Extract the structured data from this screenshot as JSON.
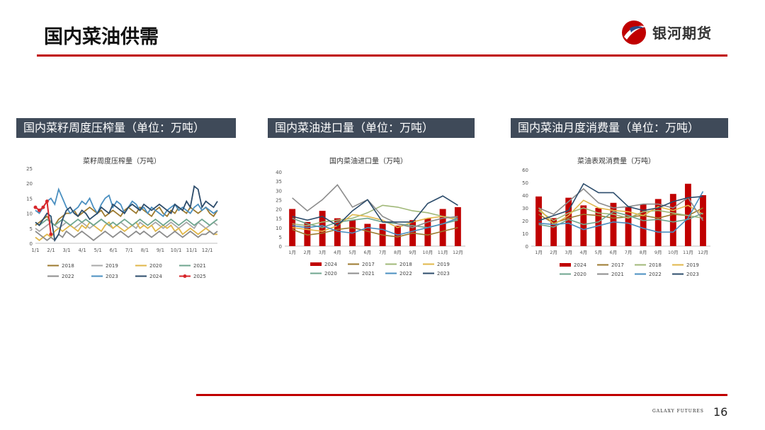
{
  "page": {
    "title": "国内菜油供需",
    "logo_text": "银河期货",
    "footer_brand": "GALAXY FUTURES",
    "page_number": "16"
  },
  "colors": {
    "accent_red": "#c00000",
    "header_bg": "#3f4a59"
  },
  "panels": [
    {
      "header": "国内菜籽周度压榨量（单位：万吨）"
    },
    {
      "header": "国内菜油进口量（单位：万吨）"
    },
    {
      "header": "国内菜油月度消费量（单位：万吨）"
    }
  ],
  "chart_data": [
    {
      "type": "line",
      "title": "菜籽周度压榨量（万吨）",
      "x_labels": [
        "1/1",
        "2/1",
        "3/1",
        "4/1",
        "5/1",
        "6/1",
        "7/1",
        "8/1",
        "9/1",
        "10/1",
        "11/1",
        "12/1"
      ],
      "ylim": [
        0,
        25
      ],
      "yticks": [
        0,
        5,
        10,
        15,
        20,
        25
      ],
      "grid": false,
      "legend": "bottom",
      "series": [
        {
          "name": "2018",
          "color": "#9c7a2f",
          "values": [
            6,
            7,
            8,
            9,
            7,
            6,
            8,
            9,
            10,
            10,
            11,
            9,
            10,
            11,
            12,
            11,
            10,
            11,
            9,
            10,
            11,
            10,
            9,
            11,
            12,
            11,
            10,
            12,
            11,
            10,
            9,
            11,
            12,
            10,
            9,
            11,
            10,
            12,
            11,
            10,
            12,
            11,
            10,
            11,
            12,
            10,
            9,
            11
          ]
        },
        {
          "name": "2019",
          "color": "#a8a8a8",
          "values": [
            5,
            4,
            5,
            6,
            7,
            6,
            5,
            6,
            7,
            6,
            5,
            6,
            7,
            6,
            5,
            6,
            7,
            8,
            7,
            6,
            5,
            6,
            7,
            6,
            5,
            6,
            5,
            7,
            6,
            5,
            6,
            7,
            6,
            5,
            6,
            7,
            6,
            5,
            6,
            7,
            6,
            5,
            7,
            6,
            5,
            6,
            7,
            6
          ]
        },
        {
          "name": "2020",
          "color": "#e0b74a",
          "values": [
            2,
            1,
            2,
            3,
            2,
            4,
            5,
            4,
            5,
            6,
            5,
            4,
            6,
            5,
            7,
            6,
            5,
            4,
            6,
            7,
            5,
            6,
            5,
            4,
            5,
            6,
            7,
            5,
            6,
            5,
            6,
            4,
            5,
            6,
            5,
            6,
            4,
            5,
            3,
            4,
            5,
            4,
            3,
            4,
            5,
            4,
            3,
            3
          ]
        },
        {
          "name": "2021",
          "color": "#6fa68f",
          "values": [
            7,
            6,
            7,
            8,
            7,
            6,
            7,
            8,
            7,
            6,
            7,
            8,
            7,
            8,
            7,
            6,
            7,
            8,
            7,
            6,
            7,
            6,
            7,
            8,
            7,
            6,
            7,
            8,
            7,
            6,
            7,
            8,
            7,
            6,
            7,
            8,
            7,
            6,
            7,
            8,
            7,
            6,
            7,
            8,
            7,
            6,
            7,
            8
          ]
        },
        {
          "name": "2022",
          "color": "#8c8c8c",
          "values": [
            4,
            3,
            2,
            1,
            2,
            1,
            3,
            2,
            4,
            3,
            2,
            3,
            4,
            3,
            2,
            1,
            2,
            3,
            4,
            3,
            2,
            3,
            4,
            3,
            2,
            3,
            4,
            3,
            4,
            3,
            2,
            3,
            4,
            3,
            2,
            3,
            4,
            3,
            2,
            3,
            4,
            3,
            2,
            3,
            3,
            4,
            3,
            4
          ]
        },
        {
          "name": "2023",
          "color": "#4a8fc0",
          "values": [
            11,
            10,
            12,
            14,
            15,
            13,
            18,
            15,
            12,
            10,
            11,
            12,
            14,
            13,
            15,
            12,
            10,
            13,
            15,
            16,
            12,
            14,
            13,
            10,
            12,
            14,
            13,
            11,
            12,
            10,
            12,
            11,
            10,
            9,
            11,
            12,
            13,
            11,
            12,
            11,
            10,
            12,
            13,
            11,
            12,
            11,
            10,
            11
          ]
        },
        {
          "name": "2024",
          "color": "#2c4c6b",
          "values": [
            7,
            6,
            8,
            10,
            9,
            1,
            3,
            8,
            11,
            12,
            10,
            9,
            11,
            10,
            8,
            9,
            10,
            12,
            11,
            10,
            13,
            12,
            11,
            10,
            12,
            13,
            12,
            11,
            13,
            12,
            11,
            12,
            13,
            12,
            11,
            10,
            13,
            12,
            11,
            14,
            12,
            19,
            18,
            12,
            14,
            13,
            12,
            14
          ]
        },
        {
          "name": "2025",
          "color": "#d7262b",
          "marker": true,
          "values": [
            12,
            11,
            12,
            14,
            3
          ]
        }
      ]
    },
    {
      "type": "bar",
      "title": "国内菜油进口量（万吨）",
      "categories": [
        "1月",
        "2月",
        "3月",
        "4月",
        "5月",
        "6月",
        "7月",
        "8月",
        "9月",
        "10月",
        "11月",
        "12月"
      ],
      "ylim": [
        0,
        40
      ],
      "yticks": [
        0,
        5,
        10,
        15,
        20,
        25,
        30,
        35,
        40
      ],
      "grid": false,
      "legend": "bottom",
      "bars": {
        "name": "2024",
        "color": "#c00000",
        "values": [
          20,
          13,
          19,
          15,
          14,
          12,
          12,
          11,
          14,
          15,
          20,
          21
        ]
      },
      "series": [
        {
          "name": "2017",
          "color": "#9c7a2f",
          "values": [
            9,
            6,
            7,
            9,
            10,
            8,
            6,
            5,
            7,
            6,
            8,
            10
          ]
        },
        {
          "name": "2018",
          "color": "#a0b878",
          "values": [
            12,
            11,
            13,
            14,
            15,
            18,
            22,
            21,
            19,
            18,
            16,
            15
          ]
        },
        {
          "name": "2019",
          "color": "#e0b74a",
          "values": [
            10,
            9,
            8,
            11,
            17,
            16,
            14,
            10,
            13,
            15,
            16,
            14
          ]
        },
        {
          "name": "2020",
          "color": "#6fa68f",
          "values": [
            15,
            12,
            10,
            13,
            14,
            15,
            13,
            12,
            11,
            10,
            12,
            14
          ]
        },
        {
          "name": "2021",
          "color": "#8c8c8c",
          "values": [
            26,
            19,
            25,
            33,
            21,
            25,
            16,
            12,
            10,
            13,
            15,
            16
          ]
        },
        {
          "name": "2022",
          "color": "#4a8fc0",
          "values": [
            11,
            10,
            11,
            8,
            7,
            10,
            9,
            6,
            8,
            10,
            12,
            15
          ]
        },
        {
          "name": "2023",
          "color": "#2c4c6b",
          "values": [
            16,
            14,
            16,
            11,
            19,
            25,
            13,
            13,
            13,
            23,
            27,
            22
          ]
        }
      ]
    },
    {
      "type": "bar",
      "title": "菜油表观消费量（万吨）",
      "categories": [
        "1月",
        "2月",
        "3月",
        "4月",
        "5月",
        "6月",
        "7月",
        "8月",
        "9月",
        "10月",
        "11月",
        "12月"
      ],
      "ylim": [
        0,
        60
      ],
      "yticks": [
        0,
        10,
        20,
        30,
        40,
        50,
        60
      ],
      "grid": false,
      "legend": "bottom",
      "bars": {
        "name": "2024",
        "color": "#c00000",
        "values": [
          39,
          22,
          38,
          32,
          30,
          34,
          31,
          33,
          37,
          41,
          49,
          40
        ]
      },
      "series": [
        {
          "name": "2017",
          "color": "#9c7a2f",
          "values": [
            25,
            18,
            22,
            25,
            24,
            22,
            23,
            24,
            22,
            25,
            24,
            30
          ]
        },
        {
          "name": "2018",
          "color": "#a0b878",
          "values": [
            28,
            20,
            26,
            30,
            26,
            25,
            22,
            27,
            28,
            26,
            24,
            22
          ]
        },
        {
          "name": "2019",
          "color": "#e0b74a",
          "values": [
            30,
            17,
            24,
            36,
            30,
            28,
            27,
            24,
            31,
            28,
            32,
            25
          ]
        },
        {
          "name": "2020",
          "color": "#6fa68f",
          "values": [
            17,
            15,
            21,
            17,
            19,
            27,
            24,
            20,
            21,
            19,
            21,
            26
          ]
        },
        {
          "name": "2021",
          "color": "#8c8c8c",
          "values": [
            30,
            25,
            35,
            45,
            34,
            30,
            31,
            33,
            33,
            30,
            38,
            20
          ]
        },
        {
          "name": "2022",
          "color": "#4a8fc0",
          "values": [
            18,
            17,
            18,
            13,
            16,
            19,
            18,
            14,
            11,
            11,
            22,
            43
          ]
        },
        {
          "name": "2023",
          "color": "#2c4c6b",
          "values": [
            20,
            24,
            28,
            49,
            42,
            42,
            31,
            28,
            30,
            35,
            38,
            39
          ]
        }
      ]
    }
  ]
}
